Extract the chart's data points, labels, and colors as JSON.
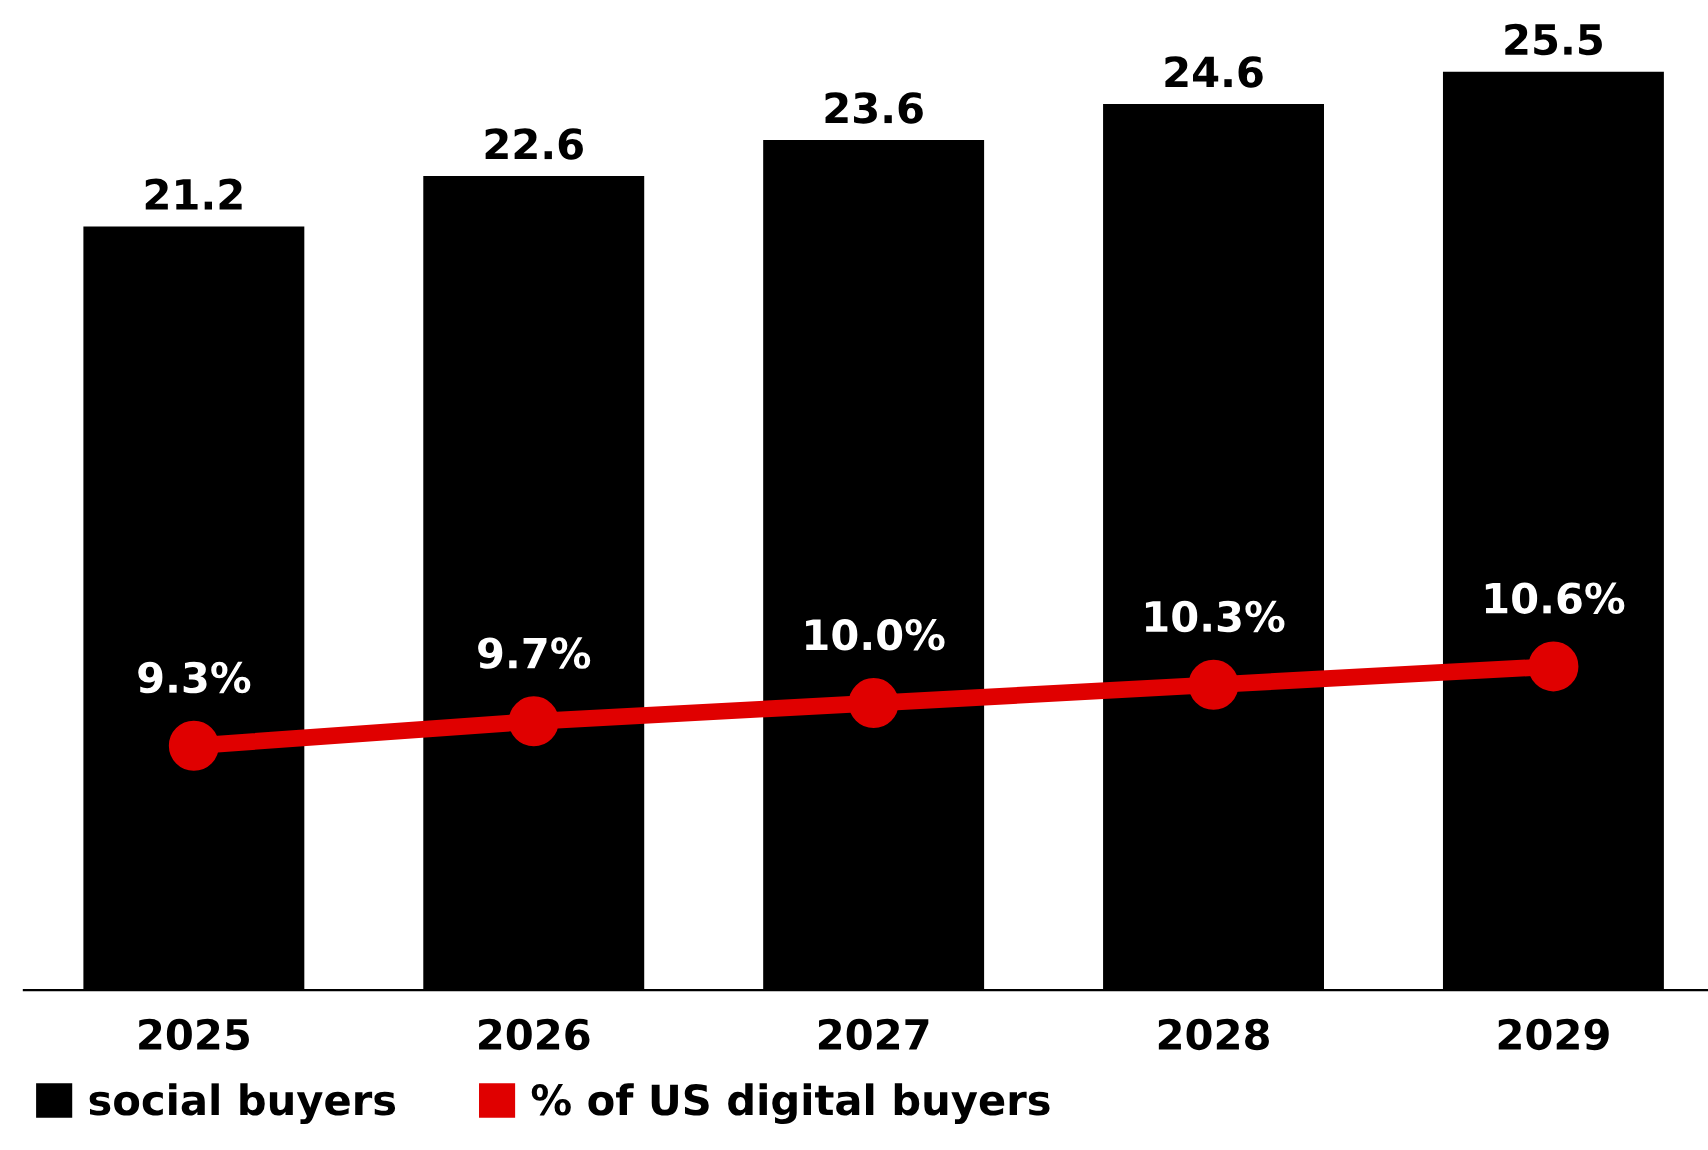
{
  "chart_data": {
    "type": "bar",
    "categories": [
      "2025",
      "2026",
      "2027",
      "2028",
      "2029"
    ],
    "series": [
      {
        "name": "social buyers",
        "color": "#000000",
        "values": [
          21.2,
          22.6,
          23.6,
          24.6,
          25.5
        ]
      },
      {
        "name": "% of US digital buyers",
        "type": "line",
        "axis": "y2",
        "color": "#e00000",
        "marker": "circle",
        "values": [
          9.3,
          9.7,
          10.0,
          10.3,
          10.6
        ],
        "value_labels": [
          "9.3%",
          "9.7%",
          "10.0%",
          "10.3%",
          "10.6%"
        ]
      }
    ],
    "data_labels": true,
    "tick_labels": "x",
    "legend": "bottom left"
  }
}
